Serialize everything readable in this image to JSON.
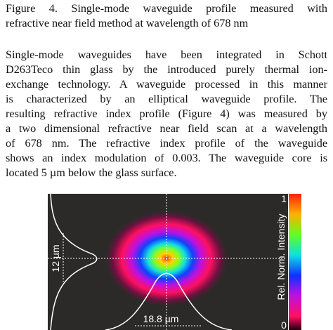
{
  "caption": {
    "lines": [
      "Figure 4. Single-mode waveguide profile measured with",
      "refractive near field method at wavelength of 678 nm"
    ]
  },
  "paragraph": {
    "lines": [
      "Single-mode waveguides have been integrated in Schott",
      "D263Teco thin glass by the introduced purely thermal ion-",
      "exchange technology. A waveguide processed in this manner",
      "is characterized by an elliptical waveguide profile. The",
      "resulting refractive index profile (Figure 4) was measured by",
      "a two dimensional refractive near field scan at a wavelength",
      "of 678 nm. The refractive index profile of the waveguide",
      "shows an index modulation of 0.003. The waveguide core is",
      "located 5 µm below the glass surface."
    ]
  },
  "figure": {
    "height_label": "12 µm",
    "width_label": "18.8 µm",
    "colorbar_label": "Rel. Norm. Intensity",
    "colorbar_max": 1,
    "colorbar_min": 0
  }
}
